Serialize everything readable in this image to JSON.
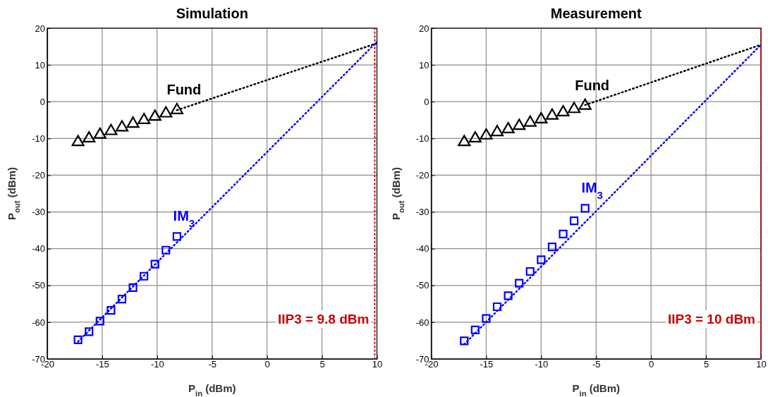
{
  "chart_data": [
    {
      "type": "scatter",
      "title": "Simulation",
      "xlabel": "P$_{in}$ (dBm)",
      "ylabel": "P$_{out}$ (dBm)",
      "xlim": [
        -20,
        10
      ],
      "ylim": [
        -70,
        20
      ],
      "xticks": [
        -20,
        -15,
        -10,
        -5,
        0,
        5,
        10
      ],
      "yticks": [
        -70,
        -60,
        -50,
        -40,
        -30,
        -20,
        -10,
        0,
        10,
        20
      ],
      "grid": true,
      "series": [
        {
          "type": "line",
          "color": "#000000",
          "line_style": "dotted",
          "marker": "none",
          "x": [
            -8.2,
            10
          ],
          "values": [
            -2.3,
            15.9
          ]
        },
        {
          "type": "line",
          "color": "#0000ff",
          "line_style": "dotted",
          "marker": "none",
          "x": [
            -17.2,
            10
          ],
          "values": [
            -65.3,
            16.3
          ]
        },
        {
          "type": "scatter",
          "name": "Fund",
          "color": "#000000",
          "marker": "triangle",
          "x": [
            -17.2,
            -16.2,
            -15.2,
            -14.2,
            -13.2,
            -12.2,
            -11.2,
            -10.2,
            -9.2,
            -8.2
          ],
          "values": [
            -11,
            -10,
            -9,
            -8,
            -7,
            -6,
            -5,
            -4.1,
            -3.2,
            -2.3
          ]
        },
        {
          "type": "scatter",
          "name": "IM$_{3}$",
          "color": "#0000ff",
          "marker": "square",
          "x": [
            -17.2,
            -16.2,
            -15.2,
            -14.2,
            -13.2,
            -12.2,
            -11.2,
            -10.2,
            -9.2,
            -8.2
          ],
          "values": [
            -64.8,
            -62.6,
            -59.7,
            -56.8,
            -53.7,
            -50.6,
            -47.5,
            -44.2,
            -40.4,
            -36.7
          ]
        }
      ],
      "ref_lines": [
        {
          "axis": "x",
          "value": 9.8,
          "label": "IIP3 = 9.8 dBm",
          "color": "#cc0000",
          "line_style": "dotted"
        }
      ]
    },
    {
      "type": "scatter",
      "title": "Measurement",
      "xlabel": "P$_{in}$ (dBm)",
      "ylabel": "P$_{out}$ (dBm)",
      "xlim": [
        -20,
        10
      ],
      "ylim": [
        -70,
        20
      ],
      "xticks": [
        -20,
        -15,
        -10,
        -5,
        0,
        5,
        10
      ],
      "yticks": [
        -70,
        -60,
        -50,
        -40,
        -30,
        -20,
        -10,
        0,
        10,
        20
      ],
      "grid": true,
      "series": [
        {
          "type": "line",
          "color": "#000000",
          "line_style": "dotted",
          "marker": "none",
          "x": [
            -6,
            10
          ],
          "values": [
            -0.9,
            15.5
          ]
        },
        {
          "type": "line",
          "color": "#0000ff",
          "line_style": "dotted",
          "marker": "none",
          "x": [
            -17,
            10
          ],
          "values": [
            -66,
            15.5
          ]
        },
        {
          "type": "scatter",
          "name": "Fund",
          "color": "#000000",
          "marker": "triangle",
          "x": [
            -17,
            -16,
            -15,
            -14,
            -13,
            -12,
            -11,
            -10,
            -9,
            -8,
            -7,
            -6
          ],
          "values": [
            -11,
            -10,
            -9.2,
            -8.3,
            -7.5,
            -6.6,
            -5.7,
            -4.8,
            -3.8,
            -2.9,
            -2,
            -1.1
          ]
        },
        {
          "type": "scatter",
          "name": "IM$_{3}$",
          "color": "#0000ff",
          "marker": "square",
          "x": [
            -17,
            -16,
            -15,
            -14,
            -13,
            -12,
            -11,
            -10,
            -9,
            -8,
            -7,
            -6
          ],
          "values": [
            -65.1,
            -62.1,
            -59,
            -55.8,
            -52.8,
            -49.4,
            -46.2,
            -43,
            -39.5,
            -36,
            -32.4,
            -29
          ]
        }
      ],
      "ref_lines": [
        {
          "axis": "x",
          "value": 10,
          "label": "IIP3 = 10 dBm",
          "color": "#cc0000",
          "line_style": "dotted"
        }
      ]
    }
  ]
}
